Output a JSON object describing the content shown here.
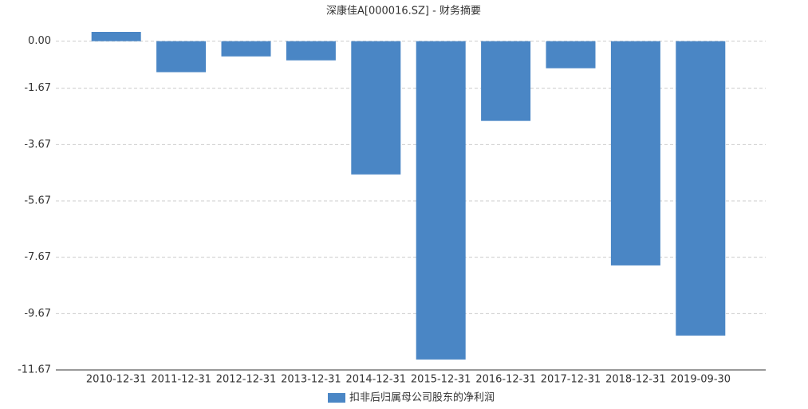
{
  "chart_data": {
    "type": "bar",
    "title": "深康佳A[000016.SZ] - 财务摘要",
    "categories": [
      "2010-12-31",
      "2011-12-31",
      "2012-12-31",
      "2013-12-31",
      "2014-12-31",
      "2015-12-31",
      "2016-12-31",
      "2017-12-31",
      "2018-12-31",
      "2019-09-30"
    ],
    "series": [
      {
        "name": "扣非后归属母公司股东的净利润",
        "color": "#4a86c5",
        "values": [
          0.33,
          -1.1,
          -0.54,
          -0.68,
          -4.73,
          -11.3,
          -2.83,
          -0.96,
          -7.96,
          -10.45
        ]
      }
    ],
    "ylim": [
      -11.67,
      0.33
    ],
    "yticks": [
      {
        "value": 0,
        "label": "0.00"
      },
      -1.67,
      -3.67,
      -5.67,
      -7.67,
      -9.67,
      -11.67
    ],
    "grid": true,
    "legend": "bottom"
  }
}
